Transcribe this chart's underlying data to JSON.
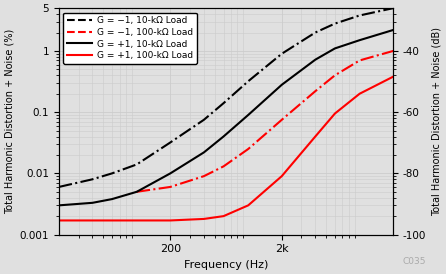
{
  "xlabel": "Frequency (Hz)",
  "ylabel_left": "Total Harmonic Distortion + Noise (%)",
  "ylabel_right": "Total Harmonic Distortion + Noise (dB)",
  "watermark": "C035",
  "xlim": [
    20,
    20000
  ],
  "ylim_left": [
    0.001,
    5
  ],
  "grid_color": "#cccccc",
  "background_color": "#e0e0e0",
  "xticks": [
    200,
    2000
  ],
  "xtick_labels": [
    "200",
    "2k"
  ],
  "yticks_left": [
    0.001,
    0.01,
    0.1,
    1.0,
    5.0
  ],
  "ytick_labels_left": [
    "0.001",
    "0.01",
    "0.1",
    "1",
    "5"
  ],
  "yticks_right": [
    0.001,
    0.01,
    0.1,
    1.0
  ],
  "ytick_labels_right": [
    "-100",
    "-80",
    "-60",
    "-40"
  ],
  "legend": [
    {
      "label": "G = −1, 10-kΩ Load",
      "color": "black",
      "linestyle": "--"
    },
    {
      "label": "G = −1, 100-kΩ Load",
      "color": "red",
      "linestyle": "--"
    },
    {
      "label": "G = +1, 10-kΩ Load",
      "color": "black",
      "linestyle": "-"
    },
    {
      "label": "G = +1, 100-kΩ Load",
      "color": "red",
      "linestyle": "-"
    }
  ],
  "curves": {
    "black_dashdot": {
      "color": "black",
      "linestyle": "-.",
      "lw": 1.5,
      "freq": [
        20,
        40,
        60,
        100,
        200,
        400,
        600,
        1000,
        2000,
        4000,
        6000,
        10000,
        20000
      ],
      "thd": [
        0.006,
        0.008,
        0.01,
        0.014,
        0.032,
        0.075,
        0.14,
        0.32,
        0.9,
        2.0,
        2.8,
        3.8,
        5.0
      ]
    },
    "red_dashdot": {
      "color": "red",
      "linestyle": "-.",
      "lw": 1.5,
      "freq": [
        100,
        200,
        400,
        600,
        1000,
        2000,
        4000,
        6000,
        10000,
        20000
      ],
      "thd": [
        0.005,
        0.006,
        0.009,
        0.013,
        0.025,
        0.075,
        0.22,
        0.4,
        0.7,
        1.0
      ]
    },
    "black_solid": {
      "color": "black",
      "linestyle": "-",
      "lw": 1.5,
      "freq": [
        20,
        40,
        60,
        100,
        200,
        400,
        600,
        1000,
        2000,
        4000,
        6000,
        10000,
        20000
      ],
      "thd": [
        0.003,
        0.0033,
        0.0038,
        0.005,
        0.01,
        0.022,
        0.04,
        0.09,
        0.28,
        0.72,
        1.1,
        1.5,
        2.2
      ]
    },
    "red_solid": {
      "color": "red",
      "linestyle": "-",
      "lw": 1.5,
      "freq": [
        20,
        40,
        60,
        100,
        200,
        400,
        600,
        1000,
        2000,
        4000,
        6000,
        10000,
        20000
      ],
      "thd": [
        0.0017,
        0.0017,
        0.0017,
        0.0017,
        0.0017,
        0.0018,
        0.002,
        0.003,
        0.009,
        0.04,
        0.095,
        0.2,
        0.38
      ]
    }
  }
}
